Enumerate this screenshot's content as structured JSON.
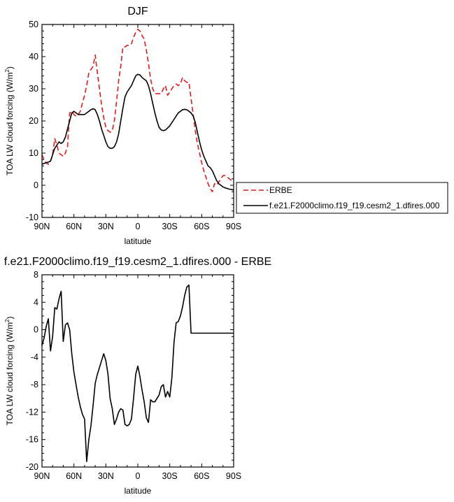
{
  "chart_data": [
    {
      "type": "line",
      "title": "DJF",
      "xlabel": "latitude",
      "ylabel": "TOA LW cloud forcing (W/m",
      "ylabel_sup": "2",
      "ylabel_close": ")",
      "xlim": [
        -90,
        90
      ],
      "ylim": [
        -10,
        50
      ],
      "xticks": [
        -90,
        -60,
        -30,
        0,
        30,
        60,
        90
      ],
      "xtick_labels": [
        "90N",
        "60N",
        "30N",
        "0",
        "30S",
        "60S",
        "90S"
      ],
      "yticks": [
        -10,
        0,
        10,
        20,
        30,
        40,
        50
      ],
      "ytick_labels": [
        "-10",
        "0",
        "10",
        "20",
        "30",
        "40",
        "50"
      ],
      "grid": false,
      "legend": "right",
      "series": [
        {
          "name": "ERBE",
          "color": "#e41a1c",
          "dash": "dashed",
          "x": [
            -90,
            -88,
            -86,
            -84,
            -82,
            -80,
            -78,
            -76,
            -74,
            -72,
            -70,
            -68,
            -66,
            -64,
            -62,
            -60,
            -58,
            -56,
            -54,
            -52,
            -50,
            -48,
            -46,
            -44,
            -42,
            -40,
            -38,
            -36,
            -34,
            -32,
            -30,
            -28,
            -26,
            -24,
            -22,
            -20,
            -18,
            -16,
            -14,
            -12,
            -10,
            -8,
            -6,
            -4,
            -2,
            0,
            2,
            4,
            6,
            8,
            10,
            12,
            14,
            16,
            18,
            20,
            22,
            24,
            26,
            28,
            30,
            32,
            34,
            36,
            38,
            40,
            42,
            44,
            46,
            48,
            50,
            52,
            54,
            56,
            58,
            60,
            62,
            64,
            66,
            68,
            70,
            72,
            74,
            76,
            78,
            80,
            82,
            84,
            86,
            88,
            90
          ],
          "y": [
            9.5,
            8.0,
            7.0,
            6.5,
            7.5,
            9.5,
            14.5,
            12.5,
            10.0,
            9.5,
            9.0,
            10.0,
            12.0,
            22.5,
            23.0,
            22.0,
            21.5,
            22.0,
            23.0,
            25.5,
            28.0,
            31.0,
            35.0,
            36.0,
            37.0,
            40.5,
            35.0,
            30.0,
            25.0,
            21.0,
            18.0,
            17.0,
            16.5,
            17.0,
            20.0,
            26.0,
            32.5,
            37.0,
            43.0,
            43.0,
            43.5,
            43.5,
            44.0,
            46.0,
            47.5,
            48.5,
            48.0,
            46.5,
            45.5,
            42.0,
            38.0,
            33.0,
            30.0,
            28.5,
            28.5,
            28.5,
            28.5,
            30.0,
            31.0,
            28.0,
            29.0,
            30.0,
            31.0,
            31.5,
            31.0,
            31.5,
            33.5,
            32.5,
            32.0,
            32.0,
            27.0,
            22.0,
            17.0,
            13.0,
            10.0,
            7.0,
            4.5,
            2.5,
            0.5,
            -1.0,
            -2.0,
            0.5,
            0.0,
            1.0,
            2.0,
            3.0,
            3.0,
            2.5,
            2.0,
            1.5,
            1.0
          ]
        },
        {
          "name": "f.e21.F2000climo.f19_f19.cesm2_1.dfires.000",
          "color": "#000000",
          "dash": "solid",
          "x": [
            -90,
            -88,
            -86,
            -84,
            -82,
            -80,
            -78,
            -76,
            -74,
            -72,
            -70,
            -68,
            -66,
            -64,
            -62,
            -60,
            -58,
            -56,
            -54,
            -52,
            -50,
            -48,
            -46,
            -44,
            -42,
            -40,
            -38,
            -36,
            -34,
            -32,
            -30,
            -28,
            -26,
            -24,
            -22,
            -20,
            -18,
            -16,
            -14,
            -12,
            -10,
            -8,
            -6,
            -4,
            -2,
            0,
            2,
            4,
            6,
            8,
            10,
            12,
            14,
            16,
            18,
            20,
            22,
            24,
            26,
            28,
            30,
            32,
            34,
            36,
            38,
            40,
            42,
            44,
            46,
            48,
            50,
            52,
            54,
            56,
            58,
            60,
            62,
            64,
            66,
            68,
            70,
            72,
            74,
            76,
            78,
            80,
            82,
            84,
            86,
            88,
            90
          ],
          "y": [
            6.5,
            6.8,
            7.0,
            7.2,
            7.5,
            9.5,
            11.5,
            12.5,
            13.5,
            13.0,
            13.5,
            15.0,
            17.5,
            20.0,
            22.5,
            23.0,
            22.5,
            22.0,
            22.0,
            22.0,
            22.0,
            22.5,
            23.0,
            23.5,
            23.8,
            23.5,
            22.0,
            20.0,
            17.5,
            15.5,
            13.5,
            12.0,
            11.5,
            11.5,
            12.0,
            13.5,
            16.0,
            20.0,
            24.0,
            27.5,
            29.0,
            30.0,
            31.0,
            32.5,
            34.0,
            34.5,
            34.3,
            33.5,
            33.0,
            32.5,
            31.0,
            28.5,
            25.5,
            22.5,
            20.0,
            18.0,
            17.2,
            17.0,
            17.2,
            17.8,
            18.5,
            19.5,
            20.5,
            21.5,
            22.5,
            23.0,
            23.5,
            23.6,
            23.5,
            23.0,
            22.5,
            21.5,
            19.5,
            16.5,
            13.5,
            11.0,
            9.0,
            7.5,
            6.0,
            5.5,
            4.5,
            3.0,
            1.5,
            0.5,
            0.0,
            -0.5,
            -0.8,
            -1.0,
            -1.2,
            -1.3,
            -1.5
          ]
        }
      ]
    },
    {
      "type": "line",
      "title": "f.e21.F2000climo.f19_f19.cesm2_1.dfires.000 - ERBE",
      "xlabel": "latitude",
      "ylabel": "TOA LW cloud forcing (W/m",
      "ylabel_sup": "2",
      "ylabel_close": ")",
      "xlim": [
        -90,
        90
      ],
      "ylim": [
        -20,
        8
      ],
      "xticks": [
        -90,
        -60,
        -30,
        0,
        30,
        60,
        90
      ],
      "xtick_labels": [
        "90N",
        "60N",
        "30N",
        "0",
        "30S",
        "60S",
        "90S"
      ],
      "yticks": [
        -20,
        -16,
        -12,
        -8,
        -4,
        0,
        4,
        8
      ],
      "ytick_labels": [
        "-20",
        "-16",
        "-12",
        "-8",
        "-4",
        "0",
        "4",
        "8"
      ],
      "grid": false,
      "legend": "none",
      "series": [
        {
          "color": "#000000",
          "dash": "solid",
          "x": [
            -90,
            -88,
            -86,
            -84,
            -82,
            -80,
            -78,
            -76,
            -74,
            -72,
            -70,
            -68,
            -66,
            -64,
            -62,
            -60,
            -58,
            -56,
            -54,
            -52,
            -50,
            -48,
            -46,
            -44,
            -42,
            -40,
            -38,
            -36,
            -34,
            -32,
            -30,
            -28,
            -26,
            -24,
            -22,
            -20,
            -18,
            -16,
            -14,
            -12,
            -10,
            -8,
            -6,
            -4,
            -2,
            0,
            2,
            4,
            6,
            8,
            10,
            12,
            14,
            16,
            18,
            20,
            22,
            24,
            26,
            28,
            30,
            32,
            34,
            36,
            38,
            40,
            42,
            44,
            46,
            48,
            50,
            52,
            54,
            56,
            58,
            60,
            62,
            64,
            66,
            68,
            70,
            72,
            74,
            76,
            78,
            80,
            82,
            84,
            86,
            88,
            90
          ],
          "y": [
            -2.3,
            -1.2,
            0.5,
            1.6,
            -3.1,
            -1.0,
            3.2,
            3.0,
            4.5,
            5.6,
            -1.7,
            0.7,
            1.0,
            0.0,
            -3.5,
            -6.2,
            -8.0,
            -9.8,
            -11.2,
            -12.3,
            -13.0,
            -19.2,
            -16.0,
            -14.0,
            -11.0,
            -7.8,
            -6.5,
            -5.5,
            -4.5,
            -3.5,
            -4.5,
            -6.5,
            -10.0,
            -11.5,
            -13.8,
            -13.0,
            -12.0,
            -11.5,
            -11.7,
            -13.8,
            -14.0,
            -13.8,
            -13.0,
            -10.0,
            -6.5,
            -5.3,
            -6.8,
            -8.8,
            -10.5,
            -12.8,
            -13.5,
            -10.2,
            -10.5,
            -10.5,
            -10.0,
            -9.5,
            -8.3,
            -8.0,
            -9.8,
            -9.0,
            -9.8,
            -7.0,
            -1.8,
            1.0,
            1.2,
            2.0,
            3.3,
            5.0,
            6.2,
            6.5,
            -0.5,
            -0.5,
            -0.5,
            -0.5,
            -0.5,
            -0.5,
            -0.5,
            -0.5,
            -0.5,
            -0.5,
            -0.5,
            -0.5,
            -0.5,
            -0.5,
            -0.5,
            -0.5,
            -0.5,
            -0.5,
            -0.5,
            -0.5,
            -0.5
          ]
        }
      ]
    }
  ]
}
